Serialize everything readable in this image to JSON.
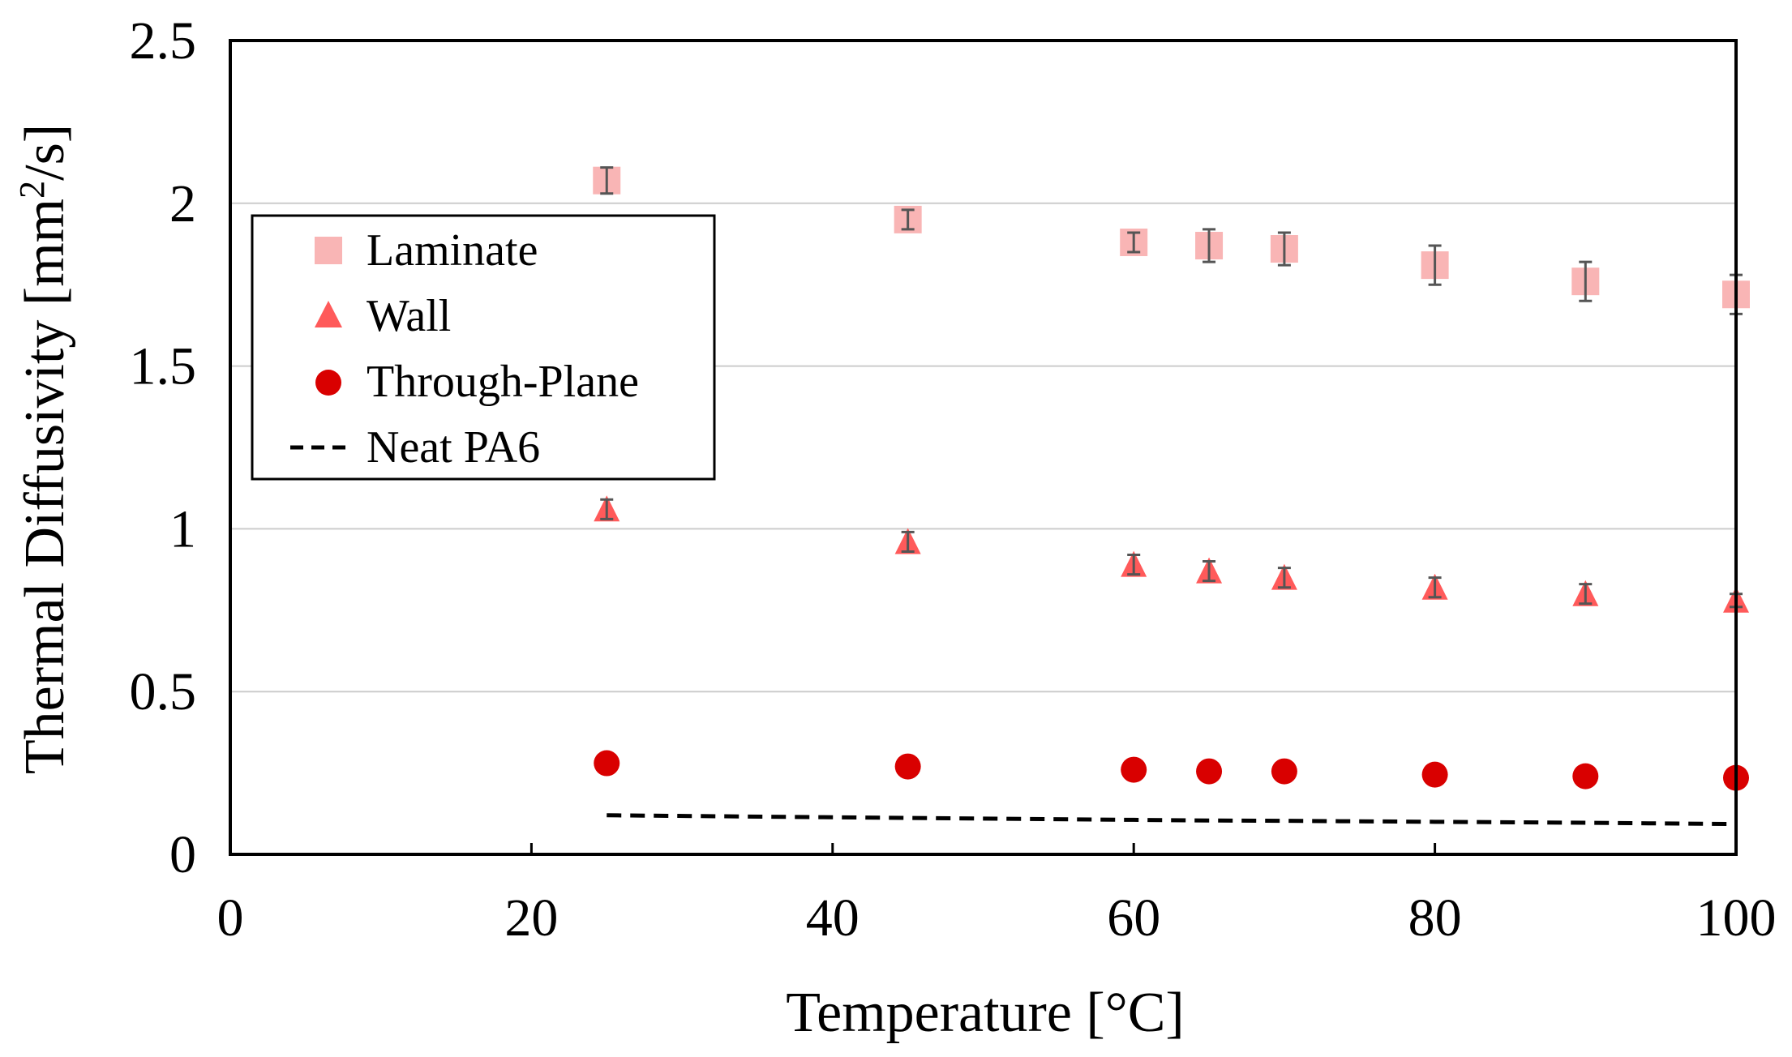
{
  "chart_data": {
    "type": "scatter",
    "xlabel": "Temperature [°C]",
    "ylabel_main": "Thermal Diffusivity [mm",
    "ylabel_sup": "2",
    "ylabel_tail": "/s]",
    "xlim": [
      0,
      100
    ],
    "ylim": [
      0,
      2.5
    ],
    "xticks": [
      0,
      20,
      40,
      60,
      80,
      100
    ],
    "yticks": [
      0,
      0.5,
      1,
      1.5,
      2,
      2.5
    ],
    "xtick_labels": [
      "0",
      "20",
      "40",
      "60",
      "80",
      "100"
    ],
    "ytick_labels": [
      "0",
      "0.5",
      "1",
      "1.5",
      "2",
      "2.5"
    ],
    "grid": "horizontal",
    "legend_position": "upper-left",
    "series": [
      {
        "name": "Laminate",
        "marker": "square",
        "color": "#f7a3a3",
        "x": [
          25,
          45,
          60,
          65,
          70,
          80,
          90,
          100
        ],
        "y": [
          2.07,
          1.95,
          1.88,
          1.87,
          1.86,
          1.81,
          1.76,
          1.72
        ],
        "err": [
          0.04,
          0.03,
          0.03,
          0.05,
          0.05,
          0.06,
          0.06,
          0.06
        ]
      },
      {
        "name": "Wall",
        "marker": "triangle",
        "color": "#ff5a5a",
        "x": [
          25,
          45,
          60,
          65,
          70,
          80,
          90,
          100
        ],
        "y": [
          1.06,
          0.96,
          0.89,
          0.87,
          0.85,
          0.82,
          0.8,
          0.78
        ],
        "err": [
          0.03,
          0.03,
          0.03,
          0.03,
          0.03,
          0.03,
          0.03,
          0.02
        ]
      },
      {
        "name": "Through-Plane",
        "marker": "circle",
        "color": "#d90000",
        "x": [
          25,
          45,
          60,
          65,
          70,
          80,
          90,
          100
        ],
        "y": [
          0.28,
          0.27,
          0.26,
          0.255,
          0.255,
          0.245,
          0.24,
          0.235
        ]
      },
      {
        "name": "Neat PA6",
        "marker": "dashed-line",
        "color": "#000000",
        "x": [
          25,
          45,
          60,
          65,
          70,
          80,
          90,
          100
        ],
        "y": [
          0.12,
          0.112,
          0.106,
          0.104,
          0.103,
          0.1,
          0.097,
          0.093
        ]
      }
    ]
  }
}
